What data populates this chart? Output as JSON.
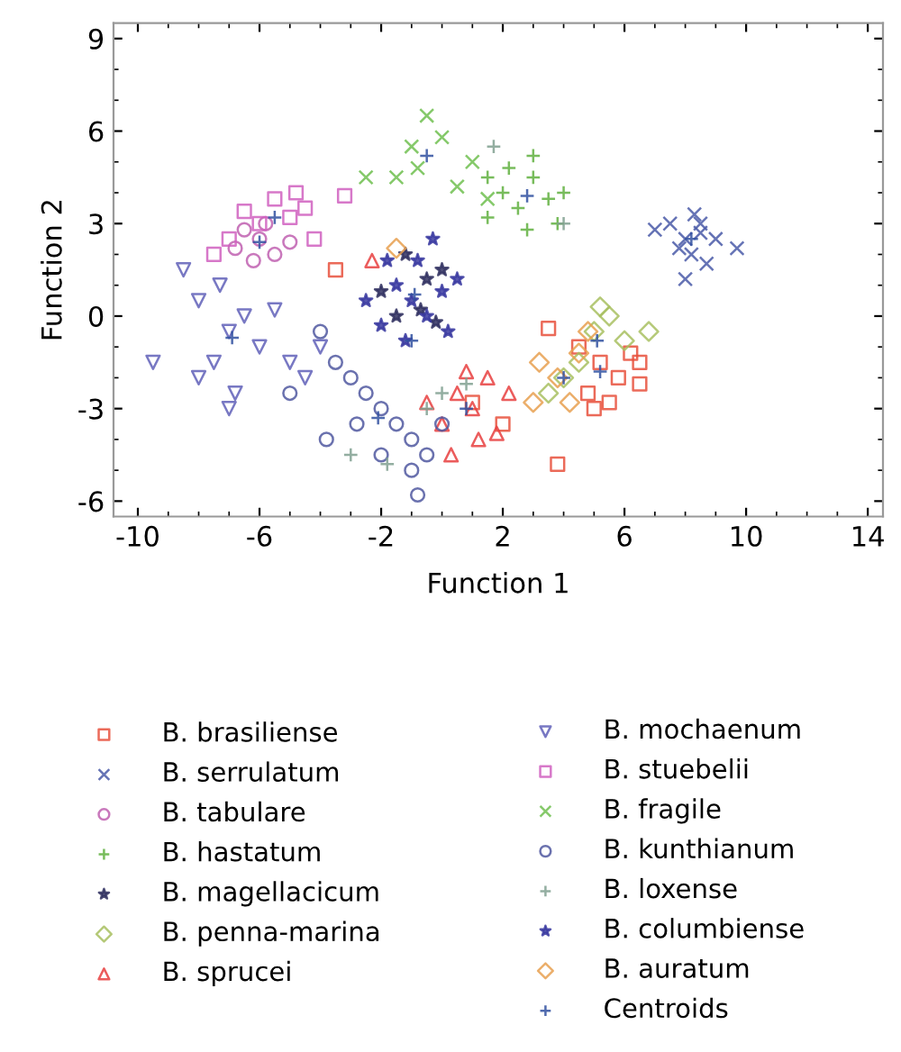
{
  "chart_data": {
    "type": "scatter",
    "xlabel": "Function 1",
    "ylabel": "Function 2",
    "xlim": [
      -10.8,
      14.5
    ],
    "ylim": [
      -6.5,
      9.5
    ],
    "xticks": [
      -10,
      -6,
      -2,
      2,
      6,
      10,
      14
    ],
    "yticks": [
      -6,
      -3,
      0,
      3,
      6,
      9
    ],
    "grid": false,
    "legend": "bottom",
    "series": [
      {
        "name": "B. brasiliense",
        "color": "#e8503c",
        "marker": "square",
        "x": [
          5.2,
          5.8,
          6.2,
          4.8,
          5.5,
          6.5,
          4.5,
          3.5,
          3.8,
          6.5,
          5.0,
          2.0,
          1.0,
          -3.5
        ],
        "values": [
          -1.5,
          -2.0,
          -1.2,
          -2.5,
          -2.8,
          -2.2,
          -1.0,
          -0.4,
          -4.8,
          -1.5,
          -3.0,
          -3.5,
          -2.8,
          1.5
        ]
      },
      {
        "name": "B. serrulatum",
        "color": "#4a5aa8",
        "marker": "cross",
        "x": [
          8.0,
          7.5,
          8.5,
          8.2,
          7.0,
          9.0,
          8.7,
          8.0,
          9.7,
          8.3,
          7.8,
          8.5
        ],
        "values": [
          2.5,
          3.0,
          3.0,
          2.0,
          2.8,
          2.5,
          1.7,
          1.2,
          2.2,
          3.3,
          2.2,
          2.7
        ]
      },
      {
        "name": "B. tabulare",
        "color": "#c060b0",
        "marker": "circle",
        "x": [
          -6.0,
          -5.5,
          -6.5,
          -5.8,
          -6.2,
          -5.0,
          -6.8
        ],
        "values": [
          2.5,
          2.0,
          2.8,
          3.0,
          1.8,
          2.4,
          2.2
        ]
      },
      {
        "name": "B. hastatum",
        "color": "#60b040",
        "marker": "plus",
        "x": [
          2.0,
          3.0,
          2.5,
          3.5,
          1.5,
          4.0,
          2.8,
          3.8,
          1.5,
          3.0,
          2.2
        ],
        "values": [
          4.0,
          4.5,
          3.5,
          3.8,
          3.2,
          4.0,
          2.8,
          3.0,
          4.5,
          5.2,
          4.8
        ]
      },
      {
        "name": "B. magellacicum",
        "color": "#303060",
        "marker": "star",
        "x": [
          -0.7,
          -0.5,
          -1.5,
          -0.2,
          0.0,
          -2.0,
          -1.2
        ],
        "values": [
          0.2,
          1.2,
          0.0,
          -0.2,
          1.5,
          0.8,
          2.0
        ]
      },
      {
        "name": "B. penna-marina",
        "color": "#a8c060",
        "marker": "diamond",
        "x": [
          5.0,
          5.5,
          4.5,
          6.0,
          4.0,
          5.2,
          6.8,
          3.5
        ],
        "values": [
          -0.5,
          0.0,
          -1.5,
          -0.8,
          -2.0,
          0.3,
          -0.5,
          -2.5
        ]
      },
      {
        "name": "B. sprucei",
        "color": "#e84040",
        "marker": "triangle",
        "x": [
          0.5,
          1.0,
          1.5,
          0.0,
          1.8,
          0.8,
          1.2,
          -0.5,
          2.2,
          0.3,
          -2.3
        ],
        "values": [
          -2.5,
          -3.0,
          -2.0,
          -3.5,
          -3.8,
          -1.8,
          -4.0,
          -2.8,
          -2.5,
          -4.5,
          1.8
        ]
      },
      {
        "name": "B. mochaenum",
        "color": "#6060b8",
        "marker": "triangle_down",
        "x": [
          -7.0,
          -8.0,
          -7.5,
          -6.5,
          -8.5,
          -9.5,
          -8.0,
          -7.0,
          -6.0,
          -5.5,
          -4.0,
          -4.5,
          -7.3,
          -6.8,
          -5.0
        ],
        "values": [
          -0.5,
          0.5,
          -1.5,
          0.0,
          1.5,
          -1.5,
          -2.0,
          -3.0,
          -1.0,
          0.2,
          -1.0,
          -2.0,
          1.0,
          -2.5,
          -1.5
        ]
      },
      {
        "name": "B. stuebelii",
        "color": "#d060c0",
        "marker": "square",
        "x": [
          -6.0,
          -7.0,
          -5.0,
          -4.5,
          -3.2,
          -4.8,
          -7.5,
          -5.5,
          -6.5,
          -4.2
        ],
        "values": [
          3.0,
          2.5,
          3.2,
          3.5,
          3.9,
          4.0,
          2.0,
          3.8,
          3.4,
          2.5
        ]
      },
      {
        "name": "B. fragile",
        "color": "#70c050",
        "marker": "cross",
        "x": [
          -1.0,
          -0.5,
          0.0,
          -1.5,
          -2.5,
          -0.8,
          0.5,
          1.5,
          1.0
        ],
        "values": [
          5.5,
          6.5,
          5.8,
          4.5,
          4.5,
          4.8,
          4.2,
          3.8,
          5.0
        ]
      },
      {
        "name": "B. kunthianum",
        "color": "#5058a0",
        "marker": "circle",
        "x": [
          -2.0,
          -1.5,
          -2.5,
          -1.0,
          -0.5,
          -3.0,
          -3.5,
          -4.0,
          -2.0,
          -1.0,
          -3.8,
          -0.8,
          0.0,
          -5.0,
          -2.8
        ],
        "values": [
          -3.0,
          -3.5,
          -2.5,
          -4.0,
          -4.5,
          -2.0,
          -1.5,
          -0.5,
          -4.5,
          -5.0,
          -4.0,
          -5.8,
          -3.5,
          -2.5,
          -3.5
        ]
      },
      {
        "name": "B. loxense",
        "color": "#80a090",
        "marker": "plus",
        "x": [
          -3.0,
          0.0,
          -0.5,
          -1.8,
          1.7,
          4.0,
          0.8
        ],
        "values": [
          -4.5,
          -2.5,
          -3.0,
          -4.8,
          5.5,
          3.0,
          -2.2
        ]
      },
      {
        "name": "B. columbiense",
        "color": "#3838a0",
        "marker": "star",
        "x": [
          -1.0,
          -0.5,
          -1.5,
          0.0,
          -2.0,
          -0.8,
          0.5,
          -1.2,
          -2.5,
          0.2,
          -0.3,
          -1.8
        ],
        "values": [
          0.5,
          0.0,
          1.0,
          0.8,
          -0.3,
          1.8,
          1.2,
          -0.8,
          0.5,
          -0.5,
          2.5,
          1.8
        ]
      },
      {
        "name": "B. auratum",
        "color": "#e8a050",
        "marker": "diamond",
        "x": [
          3.8,
          4.2,
          3.2,
          4.5,
          3.0,
          4.8,
          -1.5
        ],
        "values": [
          -2.0,
          -2.8,
          -1.5,
          -1.2,
          -2.8,
          -0.5,
          2.2
        ]
      },
      {
        "name": "Centroids",
        "color": "#3050a0",
        "marker": "plus",
        "x": [
          5.2,
          8.2,
          -6.0,
          2.8,
          -0.9,
          5.1,
          0.8,
          -6.9,
          -5.5,
          -0.5,
          -2.1,
          -1.0,
          4.0
        ],
        "values": [
          -1.8,
          2.5,
          2.4,
          3.9,
          0.7,
          -0.8,
          -3.0,
          -0.7,
          3.2,
          5.2,
          -3.3,
          -0.8,
          -2.0
        ]
      }
    ]
  }
}
